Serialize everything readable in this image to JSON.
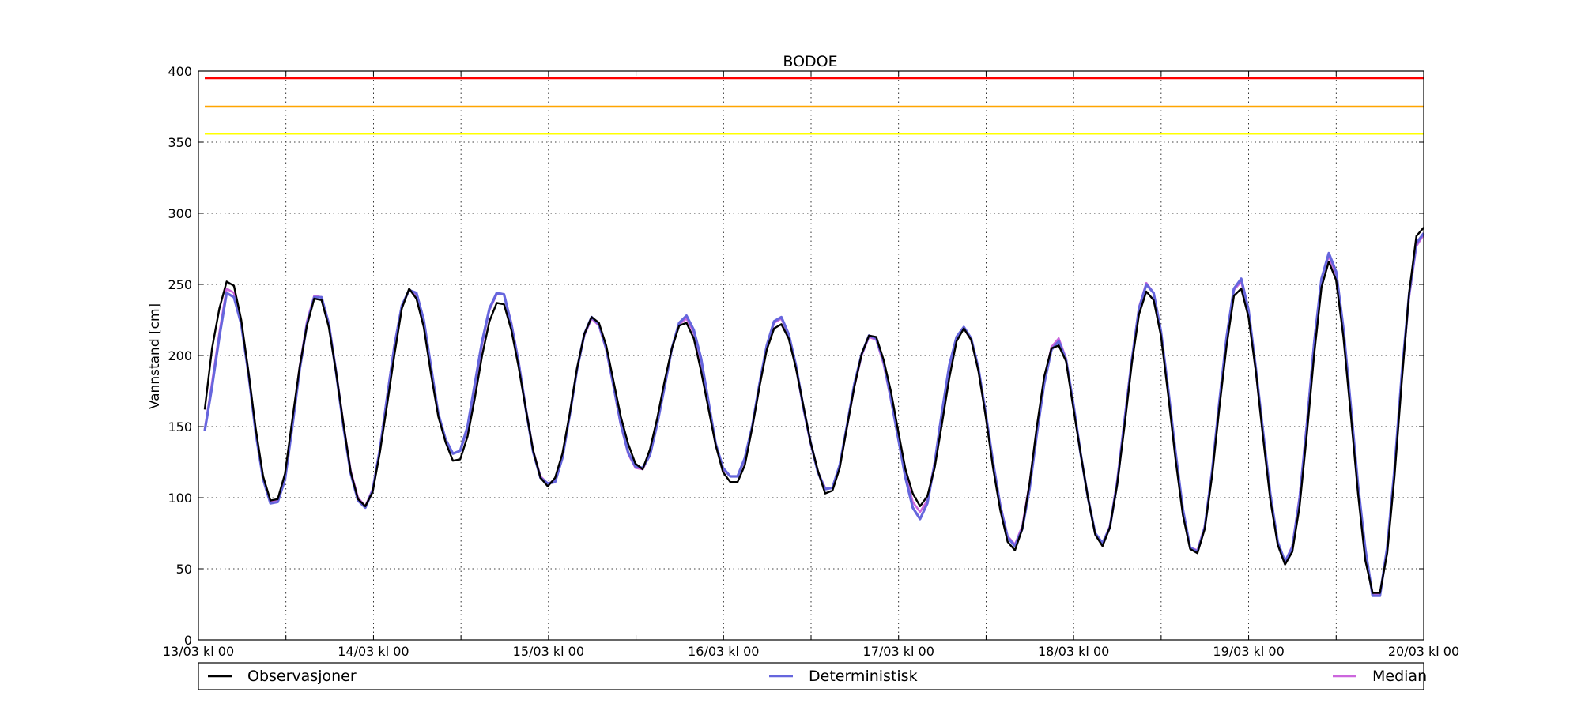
{
  "chart_data": {
    "type": "line",
    "title": "BODOE",
    "xlabel": "",
    "ylabel": "Vannstand [cm]",
    "ylim": [
      0,
      400
    ],
    "yticks": [
      0,
      50,
      100,
      150,
      200,
      250,
      300,
      350,
      400
    ],
    "xlim": [
      "13/03 kl 00",
      "20/03 kl 00"
    ],
    "xtick_labels": [
      "13/03 kl 00",
      "14/03 kl 00",
      "15/03 kl 00",
      "16/03 kl 00",
      "17/03 kl 00",
      "18/03 kl 00",
      "19/03 kl 00",
      "20/03 kl 00"
    ],
    "grid": true,
    "legend_position": "below",
    "thresholds": [
      {
        "value": 395,
        "color": "#ff0000"
      },
      {
        "value": 375,
        "color": "#ffa500"
      },
      {
        "value": 356,
        "color": "#ffff00"
      }
    ],
    "series": [
      {
        "name": "Observasjoner",
        "color": "#000000",
        "values": [
          162,
          205,
          233,
          252,
          249,
          225,
          188,
          148,
          115,
          98,
          99,
          117,
          155,
          192,
          221,
          240,
          239,
          220,
          188,
          152,
          118,
          99,
          94,
          104,
          132,
          166,
          201,
          233,
          247,
          240,
          220,
          187,
          157,
          139,
          126,
          127,
          143,
          170,
          200,
          224,
          237,
          236,
          218,
          192,
          162,
          133,
          114,
          108,
          114,
          131,
          159,
          191,
          215,
          227,
          223,
          207,
          182,
          157,
          138,
          124,
          120,
          134,
          156,
          182,
          205,
          221,
          223,
          212,
          189,
          163,
          137,
          118,
          111,
          111,
          123,
          149,
          178,
          204,
          219,
          222,
          212,
          191,
          165,
          139,
          119,
          103,
          105,
          121,
          150,
          178,
          201,
          214,
          213,
          197,
          175,
          147,
          120,
          103,
          94,
          101,
          121,
          152,
          184,
          210,
          219,
          211,
          189,
          157,
          121,
          91,
          69,
          63,
          78,
          110,
          150,
          185,
          205,
          207,
          196,
          163,
          131,
          100,
          74,
          66,
          79,
          109,
          150,
          194,
          229,
          245,
          239,
          214,
          172,
          127,
          88,
          64,
          61,
          78,
          115,
          163,
          207,
          242,
          247,
          227,
          189,
          142,
          98,
          67,
          53,
          62,
          94,
          145,
          201,
          248,
          266,
          253,
          213,
          159,
          103,
          56,
          33,
          33,
          61,
          115,
          182,
          244,
          284,
          290
        ]
      },
      {
        "name": "Deterministisk",
        "color": "#6666dd",
        "values": [
          147,
          178,
          213,
          244,
          241,
          222,
          187,
          145,
          113,
          96,
          97,
          113,
          150,
          190,
          222,
          241,
          241,
          222,
          188,
          150,
          117,
          98,
          93,
          105,
          134,
          171,
          207,
          235,
          246,
          244,
          225,
          192,
          159,
          141,
          131,
          133,
          150,
          180,
          210,
          233,
          244,
          243,
          222,
          195,
          162,
          132,
          114,
          110,
          111,
          128,
          158,
          190,
          215,
          227,
          222,
          205,
          179,
          152,
          132,
          122,
          121,
          130,
          152,
          178,
          205,
          223,
          228,
          218,
          198,
          168,
          138,
          121,
          115,
          115,
          128,
          150,
          180,
          207,
          224,
          227,
          215,
          193,
          164,
          139,
          118,
          106,
          107,
          123,
          151,
          180,
          201,
          214,
          212,
          196,
          170,
          142,
          114,
          93,
          85,
          96,
          124,
          160,
          193,
          213,
          220,
          212,
          191,
          159,
          125,
          94,
          72,
          66,
          78,
          106,
          145,
          180,
          204,
          210,
          197,
          166,
          131,
          100,
          75,
          68,
          79,
          110,
          153,
          196,
          233,
          250,
          244,
          217,
          176,
          132,
          92,
          65,
          62,
          79,
          118,
          167,
          213,
          247,
          254,
          232,
          191,
          146,
          102,
          69,
          55,
          65,
          99,
          151,
          209,
          254,
          272,
          259,
          219,
          165,
          109,
          64,
          31,
          31,
          65,
          120,
          187,
          243,
          279,
          286
        ]
      },
      {
        "name": "Median",
        "color": "#cc66dd",
        "values": [
          148,
          181,
          216,
          247,
          244,
          222,
          186,
          146,
          114,
          97,
          98,
          115,
          152,
          192,
          224,
          242,
          241,
          223,
          189,
          152,
          119,
          100,
          94,
          106,
          135,
          172,
          208,
          235,
          246,
          243,
          223,
          190,
          158,
          141,
          131,
          133,
          148,
          178,
          208,
          232,
          243,
          243,
          223,
          196,
          163,
          133,
          115,
          110,
          112,
          129,
          158,
          190,
          214,
          226,
          221,
          204,
          178,
          151,
          131,
          121,
          120,
          130,
          153,
          179,
          205,
          222,
          226,
          216,
          196,
          166,
          137,
          120,
          115,
          115,
          127,
          149,
          179,
          206,
          223,
          226,
          214,
          192,
          163,
          138,
          118,
          107,
          107,
          122,
          150,
          178,
          200,
          213,
          211,
          194,
          169,
          142,
          116,
          97,
          90,
          98,
          125,
          160,
          192,
          212,
          219,
          211,
          190,
          158,
          125,
          95,
          73,
          67,
          80,
          110,
          148,
          182,
          206,
          212,
          198,
          166,
          131,
          100,
          75,
          68,
          80,
          112,
          155,
          197,
          234,
          251,
          244,
          217,
          175,
          131,
          91,
          65,
          63,
          80,
          119,
          168,
          213,
          246,
          252,
          230,
          189,
          144,
          101,
          69,
          55,
          66,
          101,
          153,
          210,
          254,
          270,
          257,
          217,
          163,
          107,
          62,
          32,
          32,
          64,
          119,
          185,
          241,
          277,
          285
        ]
      }
    ]
  }
}
